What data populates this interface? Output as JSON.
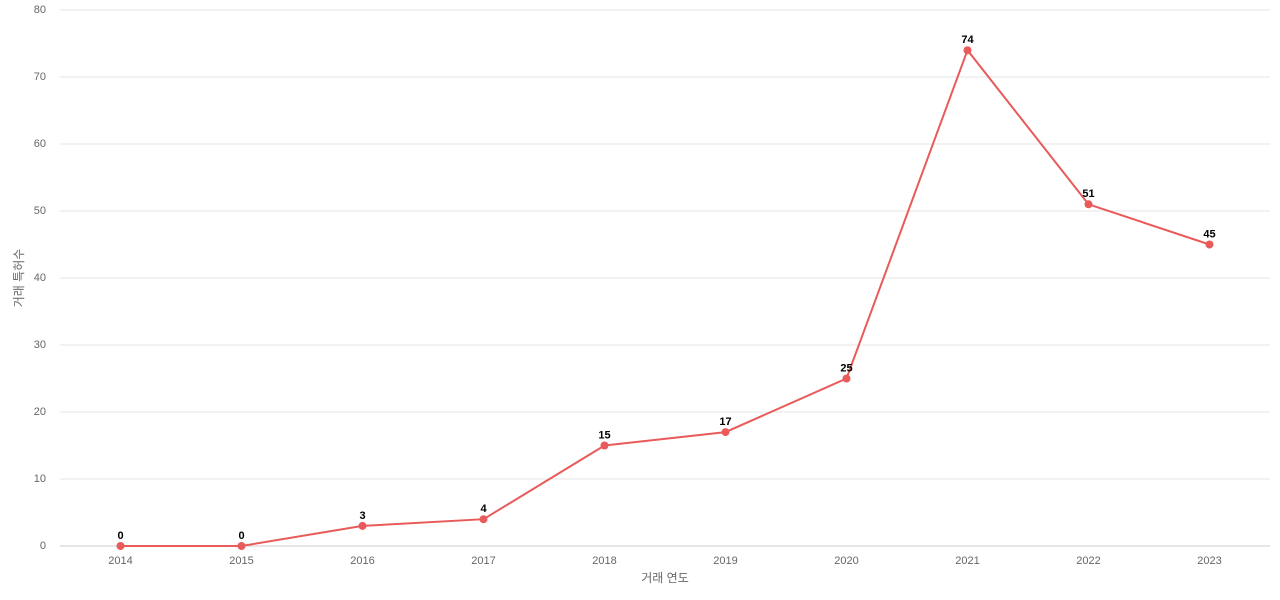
{
  "chart_data": {
    "type": "line",
    "x_label": "거래 연도",
    "y_label": "거래 특허수",
    "categories": [
      "2014",
      "2015",
      "2016",
      "2017",
      "2018",
      "2019",
      "2020",
      "2021",
      "2022",
      "2023"
    ],
    "values": [
      0,
      0,
      3,
      4,
      15,
      17,
      25,
      74,
      51,
      45
    ],
    "color": "#e95a5a",
    "ylim": [
      0,
      80
    ],
    "yticks": [
      0,
      10,
      20,
      30,
      40,
      50,
      60,
      70,
      80
    ],
    "grid": true
  }
}
